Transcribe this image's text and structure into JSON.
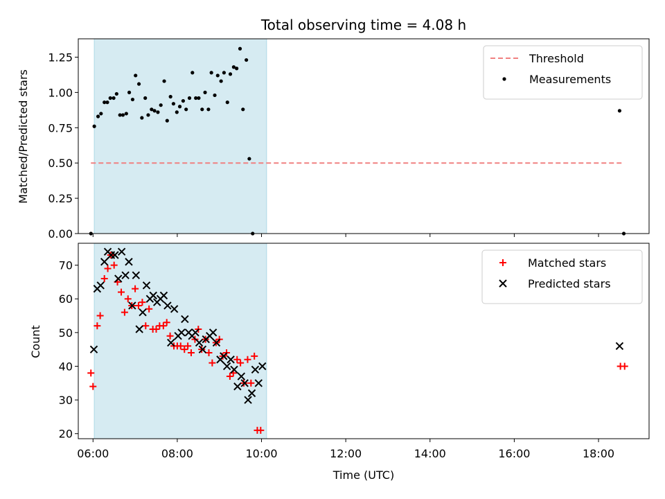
{
  "chart_data": {
    "type": "scatter",
    "title": "Total observing time = 4.08 h",
    "xlabel": "Time (UTC)",
    "xlim": [
      5.65,
      19.2
    ],
    "xticks": [
      6,
      8,
      10,
      12,
      14,
      16,
      18
    ],
    "xtick_labels": [
      "06:00",
      "08:00",
      "10:00",
      "12:00",
      "14:00",
      "16:00",
      "18:00"
    ],
    "shaded_interval": [
      6.03,
      10.12
    ],
    "panels": [
      {
        "ylabel": "Matched/Predicted stars",
        "ylim": [
          0,
          1.38
        ],
        "yticks": [
          0,
          0.25,
          0.5,
          0.75,
          1.0,
          1.25
        ],
        "ytick_labels": [
          "0.00",
          "0.25",
          "0.50",
          "0.75",
          "1.00",
          "1.25"
        ],
        "legend_position": "top-right",
        "threshold": {
          "name": "Threshold",
          "value": 0.5,
          "x": [
            5.95,
            18.6
          ],
          "color": "#f08080"
        },
        "series": [
          {
            "name": "Measurements",
            "marker": "dot",
            "color": "#000000",
            "points": [
              [
                5.95,
                0.0
              ],
              [
                6.03,
                0.76
              ],
              [
                6.12,
                0.83
              ],
              [
                6.19,
                0.85
              ],
              [
                6.27,
                0.93
              ],
              [
                6.34,
                0.93
              ],
              [
                6.41,
                0.96
              ],
              [
                6.49,
                0.96
              ],
              [
                6.56,
                0.99
              ],
              [
                6.64,
                0.84
              ],
              [
                6.71,
                0.84
              ],
              [
                6.79,
                0.85
              ],
              [
                6.86,
                1.0
              ],
              [
                6.94,
                0.95
              ],
              [
                7.01,
                1.12
              ],
              [
                7.09,
                1.06
              ],
              [
                7.16,
                0.82
              ],
              [
                7.24,
                0.96
              ],
              [
                7.31,
                0.84
              ],
              [
                7.39,
                0.88
              ],
              [
                7.46,
                0.87
              ],
              [
                7.54,
                0.86
              ],
              [
                7.61,
                0.91
              ],
              [
                7.69,
                1.08
              ],
              [
                7.76,
                0.8
              ],
              [
                7.84,
                0.97
              ],
              [
                7.91,
                0.92
              ],
              [
                7.99,
                0.86
              ],
              [
                8.06,
                0.9
              ],
              [
                8.14,
                0.94
              ],
              [
                8.21,
                0.88
              ],
              [
                8.29,
                0.96
              ],
              [
                8.36,
                1.14
              ],
              [
                8.44,
                0.96
              ],
              [
                8.51,
                0.96
              ],
              [
                8.59,
                0.88
              ],
              [
                8.66,
                1.0
              ],
              [
                8.74,
                0.88
              ],
              [
                8.81,
                1.14
              ],
              [
                8.89,
                0.98
              ],
              [
                8.96,
                1.12
              ],
              [
                9.04,
                1.08
              ],
              [
                9.11,
                1.14
              ],
              [
                9.19,
                0.93
              ],
              [
                9.26,
                1.13
              ],
              [
                9.34,
                1.18
              ],
              [
                9.41,
                1.17
              ],
              [
                9.49,
                1.31
              ],
              [
                9.56,
                0.88
              ],
              [
                9.64,
                1.23
              ],
              [
                9.71,
                0.53
              ],
              [
                9.79,
                0.0
              ],
              [
                18.5,
                0.87
              ],
              [
                18.6,
                0.0
              ]
            ]
          }
        ]
      },
      {
        "ylabel": "Count",
        "ylim": [
          18.5,
          76.5
        ],
        "yticks": [
          20,
          30,
          40,
          50,
          60,
          70
        ],
        "ytick_labels": [
          "20",
          "30",
          "40",
          "50",
          "60",
          "70"
        ],
        "legend_position": "top-right",
        "series": [
          {
            "name": "Matched stars",
            "marker": "plus",
            "color": "#ff0000",
            "points": [
              [
                5.95,
                38
              ],
              [
                6.0,
                34
              ],
              [
                6.1,
                52
              ],
              [
                6.17,
                55
              ],
              [
                6.27,
                66
              ],
              [
                6.35,
                69
              ],
              [
                6.42,
                73
              ],
              [
                6.5,
                70
              ],
              [
                6.58,
                65
              ],
              [
                6.67,
                62
              ],
              [
                6.75,
                56
              ],
              [
                6.83,
                60
              ],
              [
                6.92,
                58
              ],
              [
                7.0,
                63
              ],
              [
                7.08,
                58
              ],
              [
                7.17,
                59
              ],
              [
                7.25,
                52
              ],
              [
                7.33,
                57
              ],
              [
                7.42,
                51
              ],
              [
                7.5,
                51
              ],
              [
                7.58,
                52
              ],
              [
                7.67,
                52
              ],
              [
                7.75,
                53
              ],
              [
                7.83,
                49
              ],
              [
                7.92,
                46
              ],
              [
                8.0,
                46
              ],
              [
                8.08,
                46
              ],
              [
                8.17,
                45
              ],
              [
                8.25,
                46
              ],
              [
                8.33,
                44
              ],
              [
                8.42,
                48
              ],
              [
                8.5,
                51
              ],
              [
                8.58,
                45
              ],
              [
                8.67,
                48
              ],
              [
                8.75,
                44
              ],
              [
                8.83,
                41
              ],
              [
                8.92,
                47
              ],
              [
                9.0,
                48
              ],
              [
                9.08,
                43
              ],
              [
                9.17,
                44
              ],
              [
                9.25,
                37
              ],
              [
                9.33,
                38
              ],
              [
                9.42,
                42
              ],
              [
                9.5,
                41
              ],
              [
                9.58,
                35
              ],
              [
                9.67,
                42
              ],
              [
                9.75,
                35
              ],
              [
                9.83,
                43
              ],
              [
                9.9,
                21
              ],
              [
                9.98,
                21
              ],
              [
                18.52,
                40
              ],
              [
                18.62,
                40
              ]
            ]
          },
          {
            "name": "Predicted stars",
            "marker": "cross",
            "color": "#000000",
            "points": [
              [
                6.02,
                45
              ],
              [
                6.1,
                63
              ],
              [
                6.18,
                64
              ],
              [
                6.27,
                71
              ],
              [
                6.35,
                74
              ],
              [
                6.43,
                73
              ],
              [
                6.52,
                73
              ],
              [
                6.6,
                66
              ],
              [
                6.68,
                74
              ],
              [
                6.77,
                67
              ],
              [
                6.85,
                71
              ],
              [
                6.93,
                58
              ],
              [
                7.02,
                67
              ],
              [
                7.1,
                51
              ],
              [
                7.18,
                56
              ],
              [
                7.27,
                64
              ],
              [
                7.35,
                60
              ],
              [
                7.43,
                61
              ],
              [
                7.52,
                59
              ],
              [
                7.6,
                60
              ],
              [
                7.68,
                61
              ],
              [
                7.77,
                58
              ],
              [
                7.85,
                47
              ],
              [
                7.93,
                57
              ],
              [
                8.02,
                49
              ],
              [
                8.1,
                50
              ],
              [
                8.18,
                54
              ],
              [
                8.27,
                50
              ],
              [
                8.35,
                49
              ],
              [
                8.43,
                50
              ],
              [
                8.52,
                47
              ],
              [
                8.6,
                45
              ],
              [
                8.68,
                48
              ],
              [
                8.77,
                49
              ],
              [
                8.85,
                50
              ],
              [
                8.93,
                47
              ],
              [
                9.02,
                42
              ],
              [
                9.1,
                43
              ],
              [
                9.18,
                40
              ],
              [
                9.27,
                42
              ],
              [
                9.35,
                39
              ],
              [
                9.43,
                34
              ],
              [
                9.52,
                37
              ],
              [
                9.6,
                35
              ],
              [
                9.68,
                30
              ],
              [
                9.77,
                32
              ],
              [
                9.85,
                39
              ],
              [
                9.93,
                35
              ],
              [
                10.02,
                40
              ],
              [
                18.5,
                46
              ]
            ]
          }
        ]
      }
    ]
  }
}
